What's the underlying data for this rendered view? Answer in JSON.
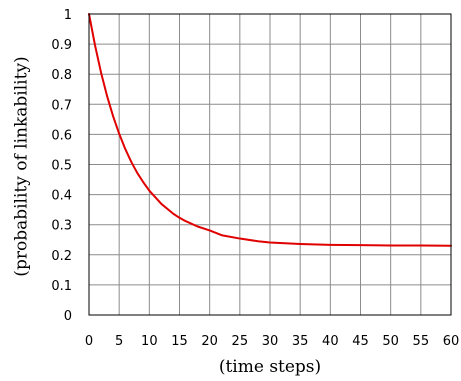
{
  "chart_data": {
    "type": "line",
    "title": "",
    "xlabel": "(time steps)",
    "ylabel": "(probability of linkability)",
    "xlim": [
      0,
      60
    ],
    "ylim": [
      0,
      1
    ],
    "x_ticks": [
      "0",
      "5",
      "10",
      "15",
      "20",
      "25",
      "30",
      "35",
      "40",
      "45",
      "50",
      "55",
      "60"
    ],
    "y_ticks": [
      "0",
      "0.1",
      "0.2",
      "0.3",
      "0.4",
      "0.5",
      "0.6",
      "0.7",
      "0.8",
      "0.9",
      "1"
    ],
    "grid": true,
    "legend": "none",
    "series": [
      {
        "color": "#e00000",
        "x": [
          0,
          1,
          2,
          3,
          4,
          5,
          6,
          7,
          8,
          9,
          10,
          12,
          14,
          15,
          16,
          18,
          20,
          22,
          25,
          28,
          30,
          35,
          40,
          45,
          50,
          55,
          60
        ],
        "y": [
          1.0,
          0.896,
          0.805,
          0.727,
          0.66,
          0.602,
          0.552,
          0.509,
          0.472,
          0.441,
          0.413,
          0.369,
          0.336,
          0.323,
          0.312,
          0.294,
          0.281,
          0.265,
          0.254,
          0.245,
          0.241,
          0.236,
          0.233,
          0.232,
          0.231,
          0.231,
          0.23
        ]
      }
    ]
  }
}
